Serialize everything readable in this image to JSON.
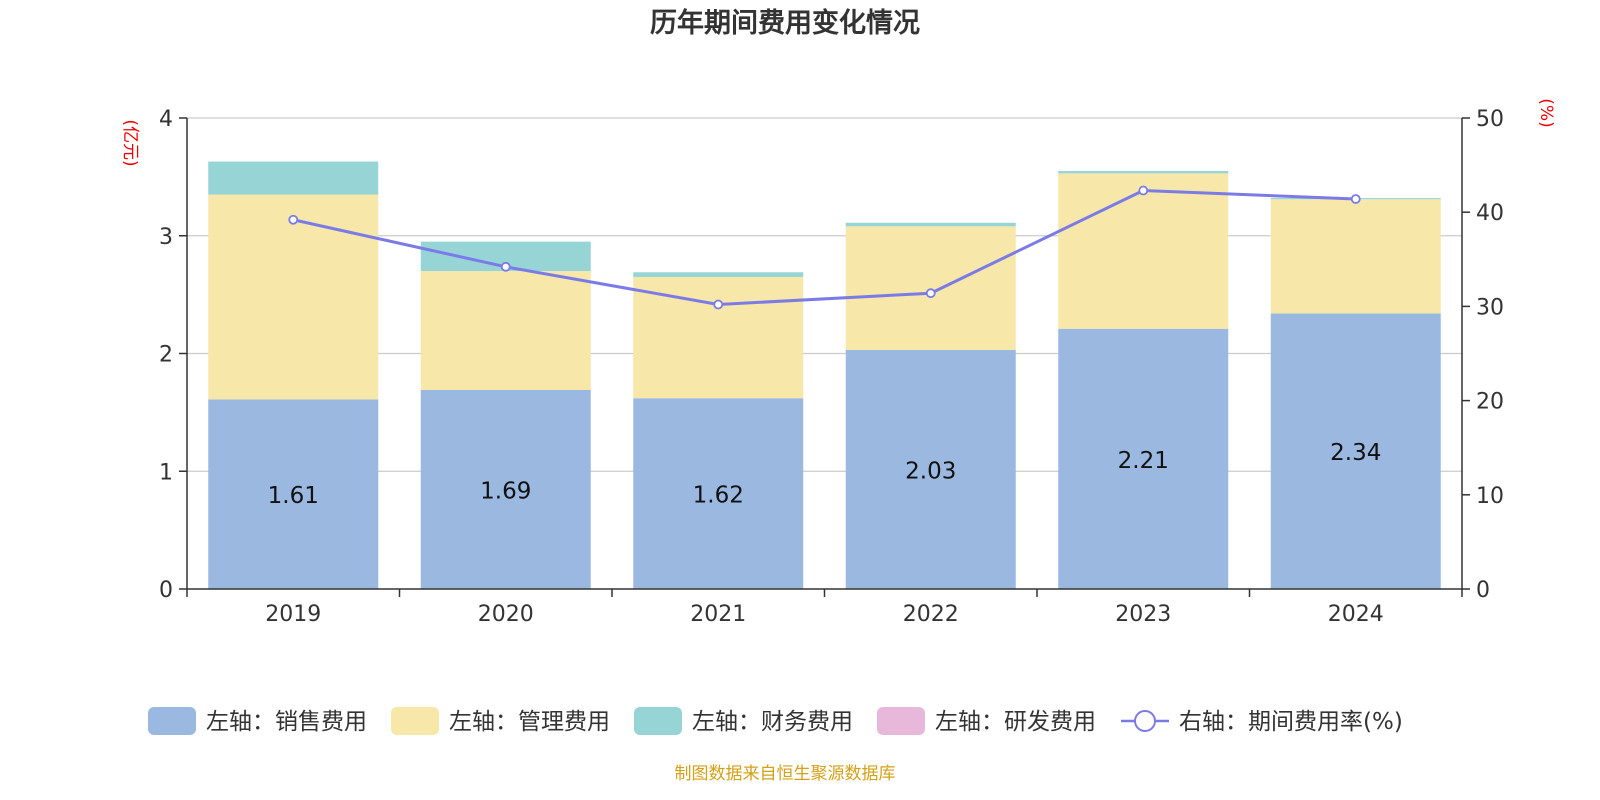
{
  "chart_data": {
    "type": "bar",
    "title": "历年期间费用变化情况",
    "left_axis": {
      "unit": "(亿元)",
      "ylim": [
        0,
        4
      ],
      "ticks": [
        0,
        1,
        2,
        3,
        4
      ]
    },
    "right_axis": {
      "unit": "(%)",
      "ylim": [
        0,
        50
      ],
      "ticks": [
        0,
        10,
        20,
        30,
        40,
        50
      ]
    },
    "grid": true,
    "legend_position": "bottom",
    "categories": [
      "2019",
      "2020",
      "2021",
      "2022",
      "2023",
      "2024"
    ],
    "series": [
      {
        "name": "左轴：销售费用",
        "type": "bar",
        "axis": "left",
        "color": "#9bb8e1",
        "values": [
          1.61,
          1.69,
          1.62,
          2.03,
          2.21,
          2.34
        ],
        "labels_shown": true
      },
      {
        "name": "左轴：管理费用",
        "type": "bar",
        "axis": "left",
        "color": "#f7e7a9",
        "values": [
          1.74,
          1.01,
          1.03,
          1.05,
          1.32,
          0.97
        ]
      },
      {
        "name": "左轴：财务费用",
        "type": "bar",
        "axis": "left",
        "color": "#97d4d6",
        "values": [
          0.28,
          0.25,
          0.04,
          0.03,
          0.02,
          0.01
        ]
      },
      {
        "name": "左轴：研发费用",
        "type": "bar",
        "axis": "left",
        "color": "#e7b8da",
        "values": [
          0,
          0,
          0,
          0,
          0,
          0
        ]
      },
      {
        "name": "右轴：期间费用率(%)",
        "type": "line",
        "axis": "right",
        "color": "#7b7be8",
        "values": [
          39.2,
          34.2,
          30.2,
          31.4,
          42.3,
          41.4
        ]
      }
    ],
    "source": "制图数据来自恒生聚源数据库"
  }
}
